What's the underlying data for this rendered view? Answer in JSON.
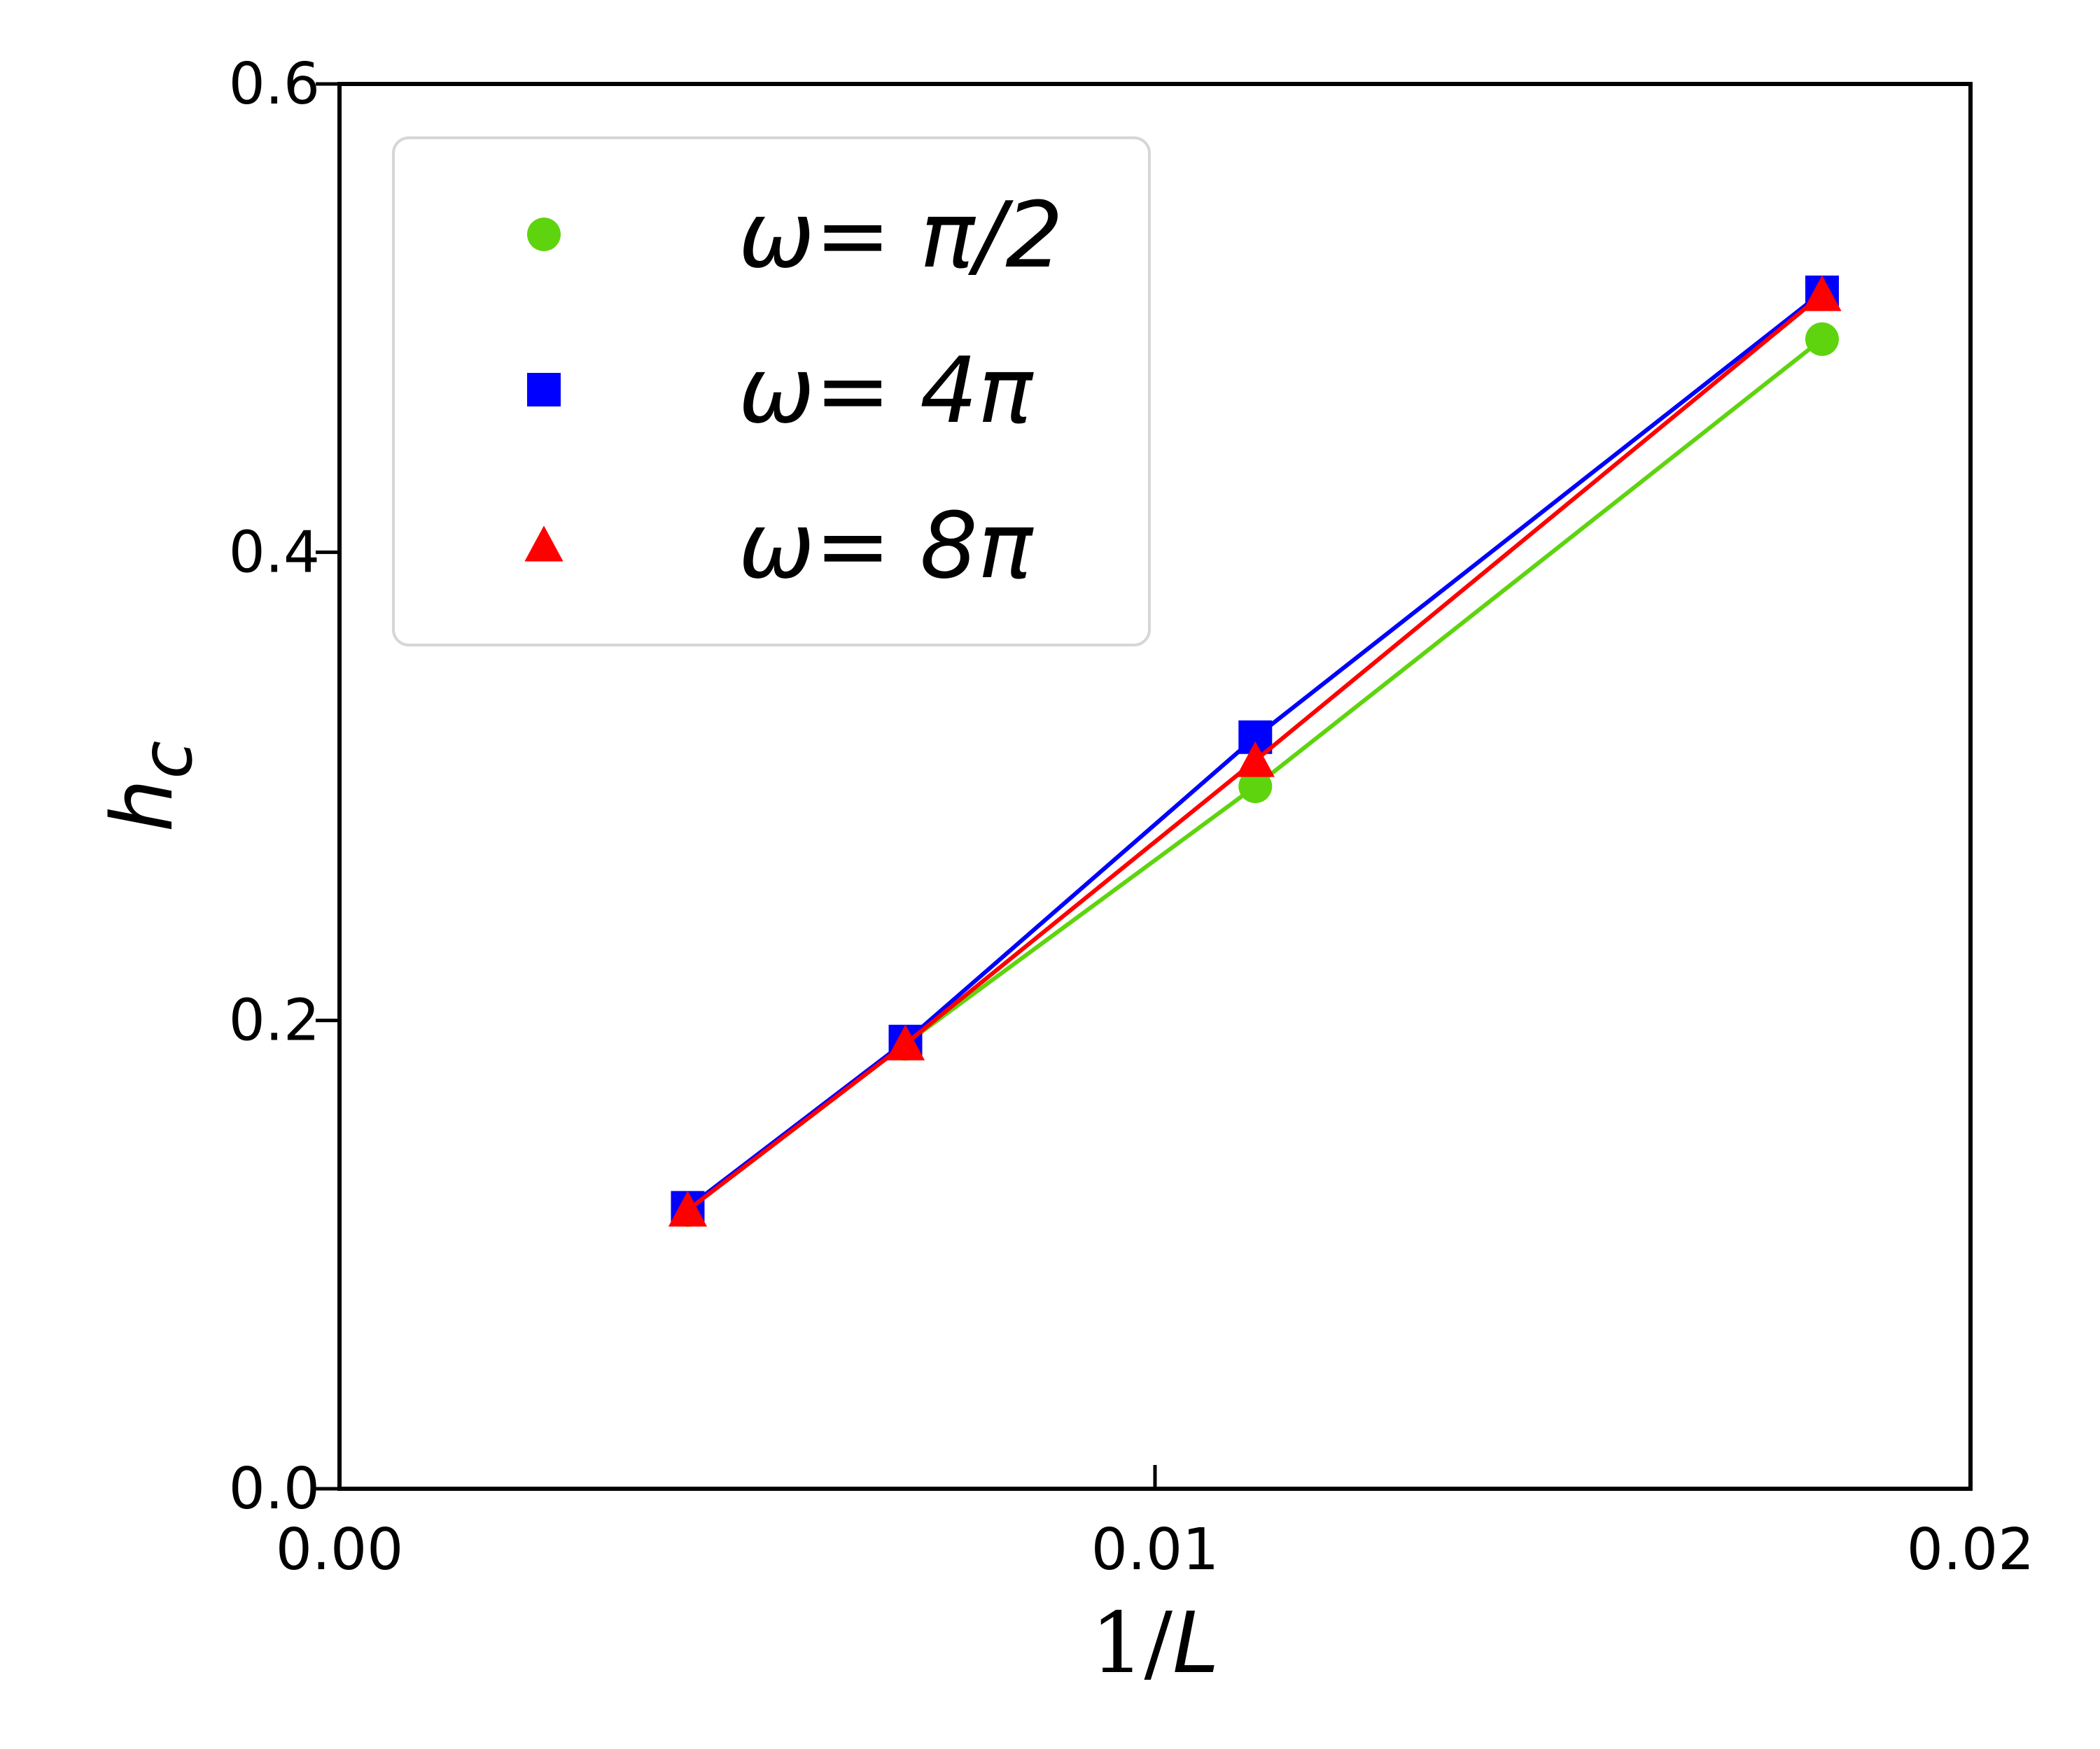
{
  "chart_data": {
    "type": "line",
    "title": "",
    "xlabel": {
      "prefix": "1/",
      "var": "L"
    },
    "ylabel": {
      "base": "h",
      "sub": "c"
    },
    "xlim": [
      0.0,
      0.02
    ],
    "ylim": [
      0.0,
      0.6
    ],
    "xticks": [
      0.0,
      0.01,
      0.02
    ],
    "xtick_labels": [
      "0.00",
      "0.01",
      "0.02"
    ],
    "yticks": [
      0.0,
      0.2,
      0.4,
      0.6
    ],
    "ytick_labels": [
      "0.0",
      "0.2",
      "0.4",
      "0.6"
    ],
    "grid": false,
    "legend_position": "top-left",
    "series": [
      {
        "label_greek": "ω",
        "label_eq": "= ",
        "label_value": "π/2",
        "marker": "circle",
        "color": "#5ed40f",
        "x": [
          0.00427,
          0.00694,
          0.01123,
          0.01818
        ],
        "y": [
          0.119,
          0.19,
          0.3,
          0.491
        ]
      },
      {
        "label_greek": "ω",
        "label_eq": "= ",
        "label_value": "4π",
        "marker": "square",
        "color": "#0000ff",
        "x": [
          0.00427,
          0.00694,
          0.01123,
          0.01818
        ],
        "y": [
          0.12,
          0.191,
          0.321,
          0.511
        ]
      },
      {
        "label_greek": "ω",
        "label_eq": "= ",
        "label_value": "8π",
        "marker": "triangle",
        "color": "#ff0000",
        "x": [
          0.00427,
          0.00694,
          0.01123,
          0.01818
        ],
        "y": [
          0.119,
          0.19,
          0.311,
          0.51
        ]
      }
    ]
  }
}
